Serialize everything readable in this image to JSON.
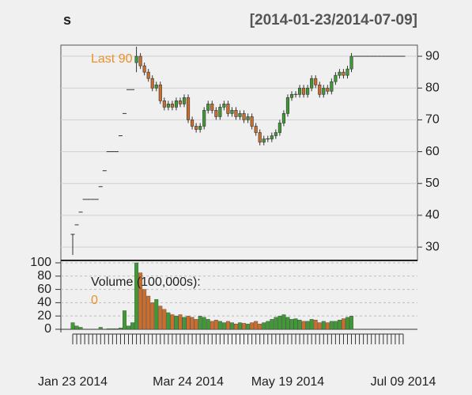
{
  "chart_data": {
    "type": "candlestick",
    "title": "s",
    "subtitle": "[2014-01-23/2014-07-09]",
    "last_label": "Last 90",
    "volume_label": "Volume (100,000s):",
    "volume_last": 0,
    "categories": [
      "Jan 23 2014",
      null,
      null,
      null,
      null,
      null,
      null,
      null,
      null,
      null,
      null,
      null,
      null,
      null,
      null,
      null,
      null,
      null,
      null,
      null,
      null,
      null,
      null,
      null,
      null,
      null,
      null,
      null,
      null,
      "Mar 24 2014",
      null,
      null,
      null,
      null,
      null,
      null,
      null,
      null,
      null,
      null,
      null,
      null,
      null,
      null,
      null,
      null,
      null,
      null,
      null,
      null,
      null,
      null,
      null,
      null,
      "May 19 2014",
      null,
      null,
      null,
      null,
      null,
      null,
      null,
      null,
      null,
      null,
      null,
      null,
      null,
      null,
      null,
      null,
      null,
      null,
      null,
      null,
      null,
      null,
      null,
      null,
      null,
      null,
      null,
      null,
      "Jul 09 2014"
    ],
    "open": [
      34,
      37,
      41,
      45,
      45,
      45,
      45,
      49,
      54,
      60,
      60,
      60,
      65,
      72,
      79.5,
      79.5,
      88,
      90,
      87,
      85,
      83,
      80,
      81,
      76,
      74,
      75,
      74,
      76,
      75,
      77,
      70,
      68,
      67,
      68,
      73,
      75,
      73,
      71,
      74,
      75,
      72,
      73,
      71,
      72,
      70,
      71,
      68,
      66,
      63,
      64,
      64,
      65,
      66,
      69,
      72,
      77,
      78,
      78,
      80,
      78,
      80,
      83,
      81,
      78,
      80,
      79,
      82,
      84,
      85,
      84,
      86,
      90,
      90,
      90,
      90,
      90,
      90,
      90,
      90,
      90,
      90,
      90,
      90,
      90
    ],
    "high": [
      34,
      37,
      41,
      45,
      45,
      45,
      45,
      49,
      54,
      60,
      60,
      60,
      65,
      72,
      79.5,
      79.5,
      93,
      91,
      88,
      86,
      84,
      82,
      82,
      77,
      76,
      76,
      77,
      77,
      78,
      78,
      71,
      69,
      69,
      74,
      76,
      76,
      74,
      75,
      76,
      76,
      74,
      74,
      73,
      73,
      72,
      72,
      69,
      67,
      65,
      65,
      66,
      67,
      70,
      73,
      78,
      79,
      79,
      81,
      81,
      81,
      84,
      84,
      82,
      81,
      81,
      83,
      85,
      86,
      86,
      87,
      91,
      90,
      90,
      90,
      90,
      90,
      90,
      90,
      90,
      90,
      90,
      90,
      90,
      90
    ],
    "low": [
      27.5,
      37,
      41,
      45,
      45,
      45,
      45,
      49,
      54,
      60,
      60,
      60,
      65,
      72,
      79.5,
      79.5,
      85,
      86,
      84,
      82,
      79,
      79,
      75,
      73,
      73,
      73,
      73,
      74,
      74,
      69,
      67,
      66,
      66,
      67,
      72,
      72,
      70,
      70,
      73,
      71,
      71,
      70,
      70,
      69,
      69,
      67,
      65,
      62,
      62,
      63,
      63,
      64,
      65,
      68,
      71,
      76,
      77,
      77,
      77,
      77,
      79,
      80,
      77,
      77,
      78,
      78,
      81,
      83,
      83,
      83,
      85,
      90,
      90,
      90,
      90,
      90,
      90,
      90,
      90,
      90,
      90,
      90,
      90,
      90
    ],
    "close": [
      34,
      37,
      41,
      45,
      45,
      45,
      45,
      49,
      54,
      60,
      60,
      60,
      65,
      72,
      79.5,
      79.5,
      90,
      87,
      85,
      83,
      80,
      81,
      76,
      74,
      75,
      74,
      76,
      75,
      77,
      70,
      68,
      67,
      68,
      73,
      75,
      73,
      71,
      74,
      75,
      72,
      73,
      71,
      72,
      70,
      71,
      68,
      66,
      63,
      64,
      64,
      65,
      66,
      69,
      72,
      77,
      78,
      78,
      80,
      78,
      80,
      83,
      81,
      78,
      80,
      79,
      82,
      84,
      85,
      84,
      86,
      90,
      90,
      90,
      90,
      90,
      90,
      90,
      90,
      90,
      90,
      90,
      90,
      90,
      90
    ],
    "volume": [
      10,
      5,
      3,
      0,
      0,
      0,
      0,
      3,
      0,
      1,
      1,
      1,
      2,
      28,
      5,
      10,
      100,
      85,
      60,
      50,
      40,
      45,
      35,
      30,
      25,
      22,
      20,
      22,
      18,
      20,
      18,
      15,
      20,
      18,
      15,
      12,
      14,
      12,
      10,
      12,
      10,
      8,
      10,
      9,
      8,
      10,
      12,
      8,
      10,
      12,
      15,
      18,
      20,
      22,
      18,
      15,
      16,
      14,
      12,
      12,
      15,
      14,
      10,
      12,
      10,
      12,
      12,
      14,
      16,
      18,
      20,
      0,
      0,
      0,
      0,
      0,
      0,
      0,
      0,
      0,
      0,
      0,
      0,
      0
    ],
    "ylim": [
      25.8,
      93.5
    ],
    "yticks": [
      30,
      40,
      50,
      60,
      70,
      80,
      90
    ],
    "volume_ylim": [
      -4.8,
      103.6
    ],
    "volume_yticks": [
      0,
      20,
      40,
      60,
      80,
      100
    ],
    "up_color": "#3f9a35",
    "down_color": "#cd6d2c",
    "label_color": "#e8912a",
    "grid": true
  }
}
